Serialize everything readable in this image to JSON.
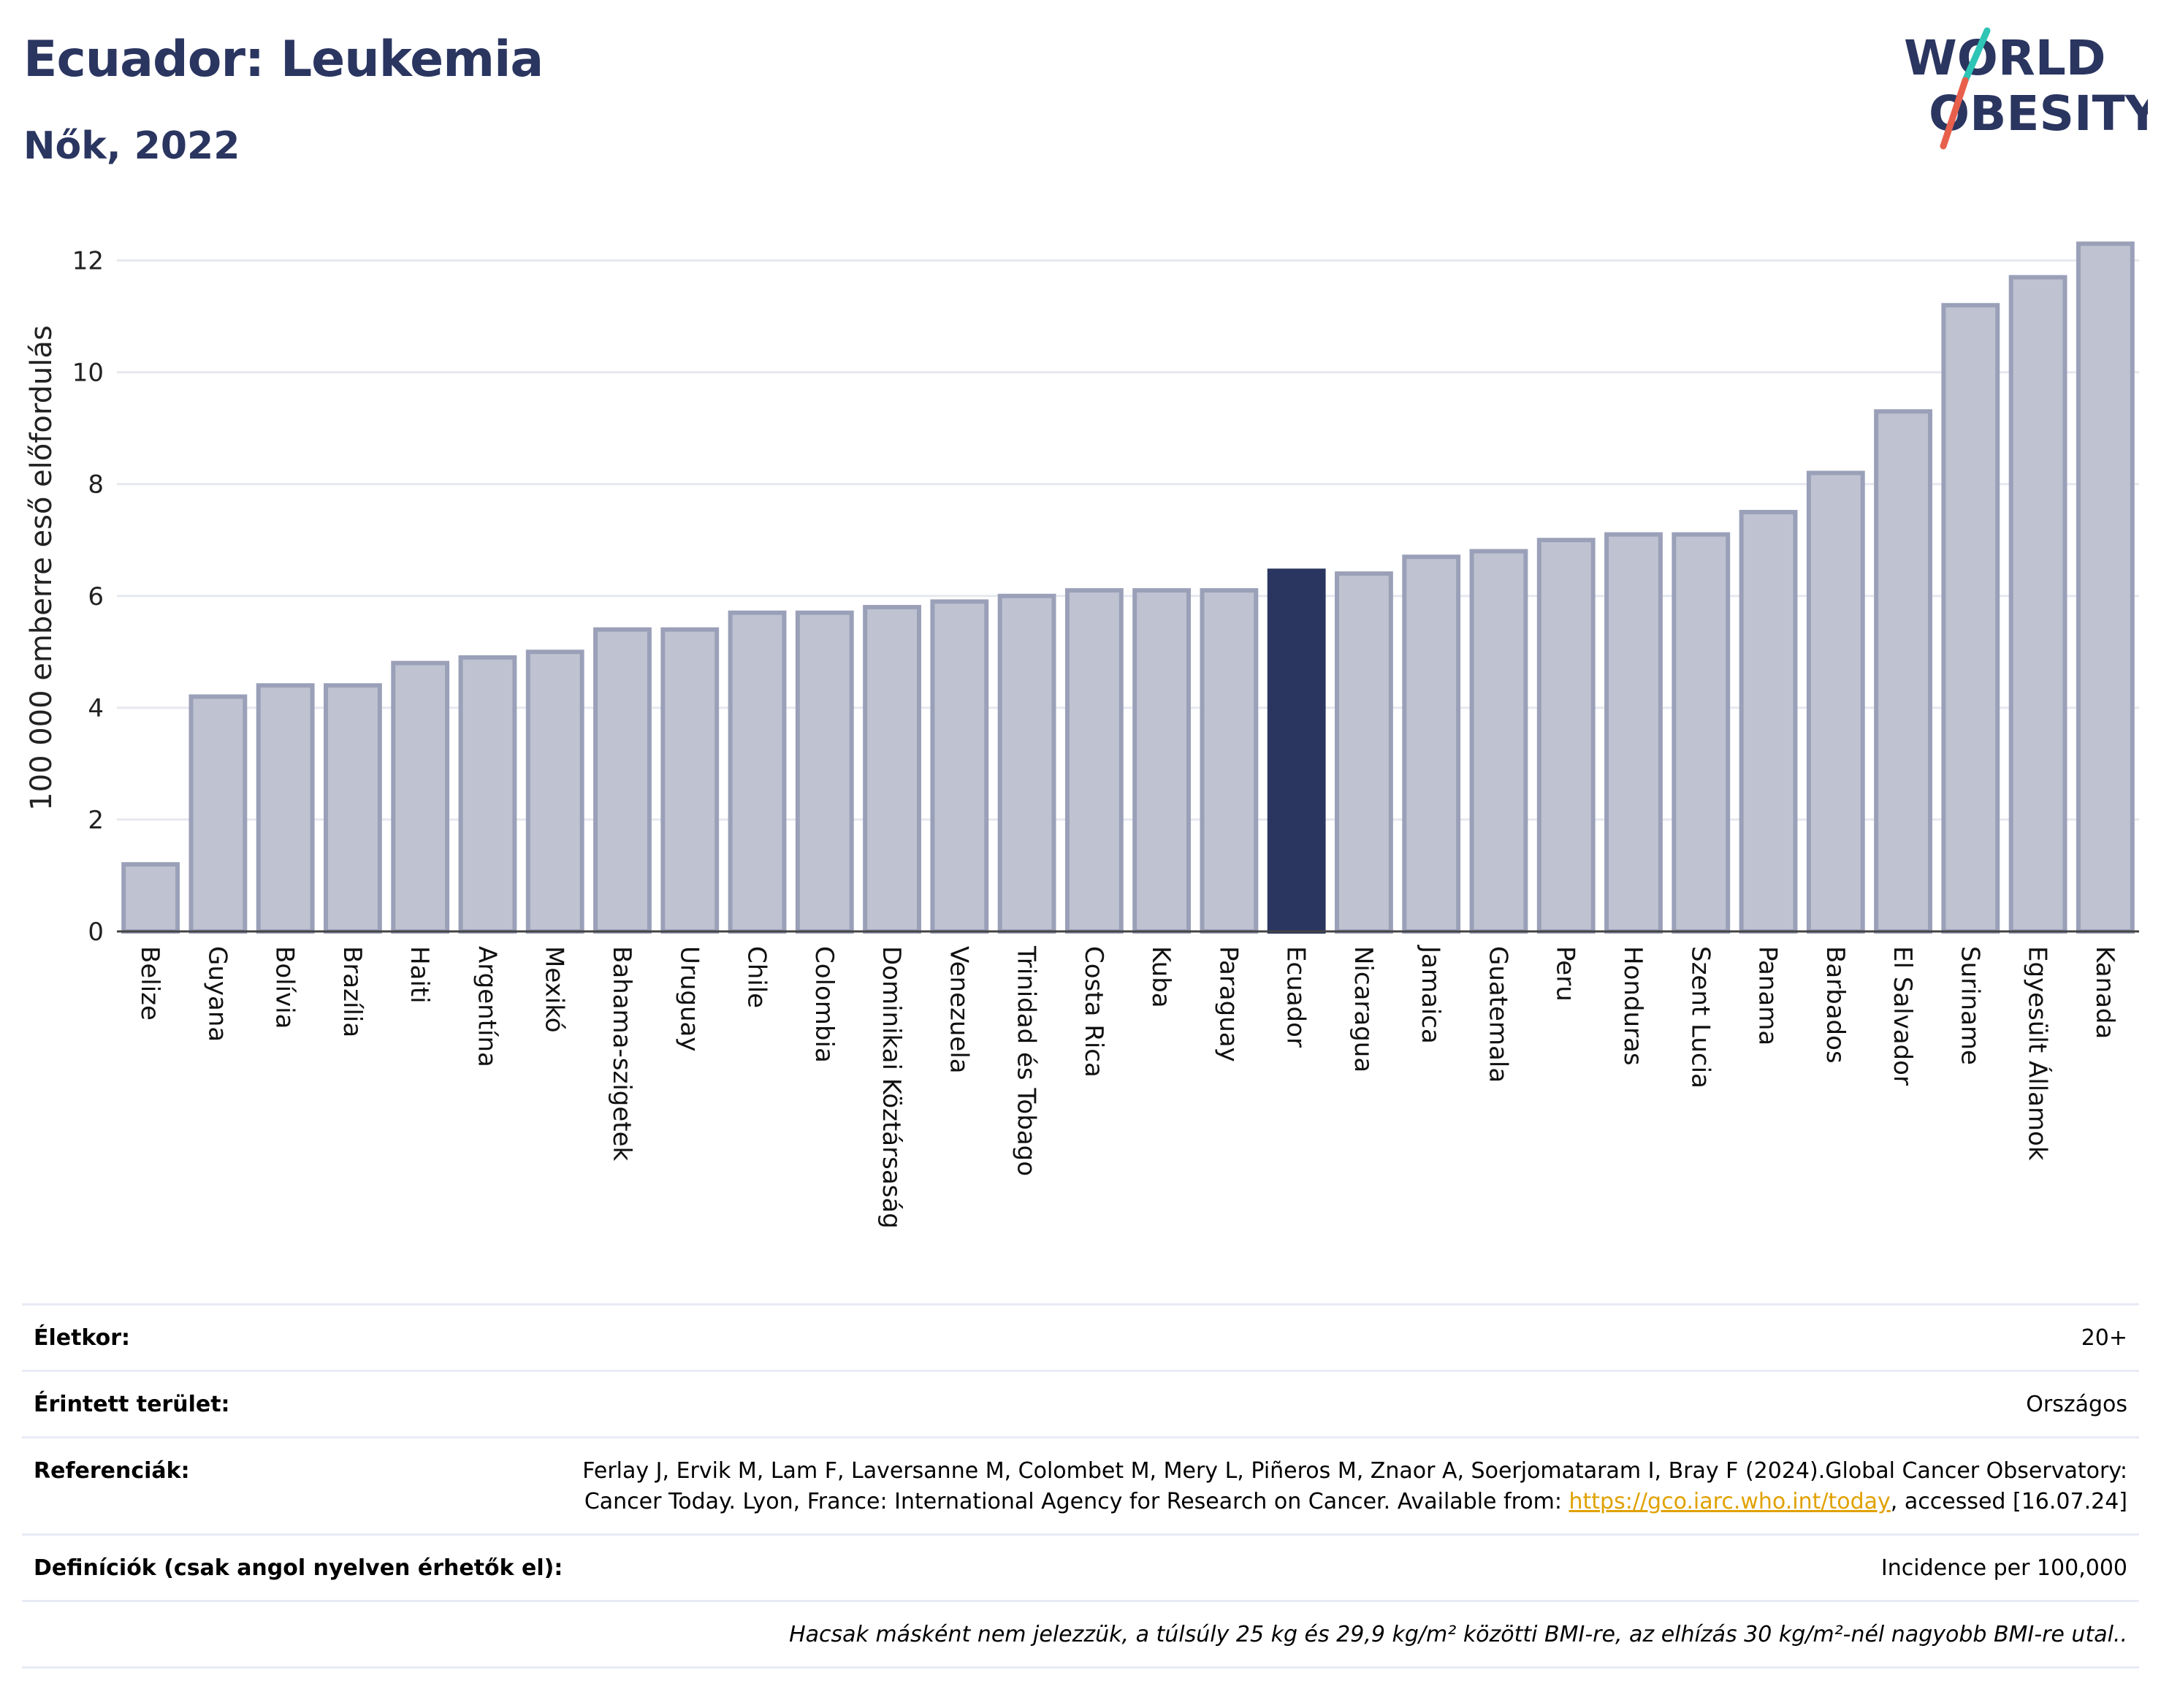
{
  "header": {
    "title": "Ecuador: Leukemia",
    "subtitle": "Nők, 2022"
  },
  "logo": {
    "line1": "WORLD",
    "line2": "OBESITY"
  },
  "colors": {
    "bar": "#bfc3d1",
    "bar_border": "#9aa0b8",
    "highlight": "#2a3560",
    "grid": "#e6e8ef",
    "accent_slash_top": "#2ec4b6",
    "accent_slash_bottom": "#e8604c"
  },
  "chart_data": {
    "type": "bar",
    "title": "",
    "xlabel": "",
    "ylabel": "100 000 emberre eső előfordulás",
    "ylim": [
      0,
      13
    ],
    "yticks": [
      0,
      2,
      4,
      6,
      8,
      10,
      12
    ],
    "grid": true,
    "highlight": "Ecuador",
    "categories": [
      "Belize",
      "Guyana",
      "Bolívia",
      "Brazília",
      "Haiti",
      "Argentína",
      "Mexikó",
      "Bahama-szigetek",
      "Uruguay",
      "Chile",
      "Colombia",
      "Dominikai Köztársaság",
      "Venezuela",
      "Trinidad és Tobago",
      "Costa Rica",
      "Kuba",
      "Paraguay",
      "Ecuador",
      "Nicaragua",
      "Jamaica",
      "Guatemala",
      "Peru",
      "Honduras",
      "Szent Lucia",
      "Panama",
      "Barbados",
      "El Salvador",
      "Suriname",
      "Egyesült Államok",
      "Kanada"
    ],
    "values": [
      1.2,
      4.2,
      4.4,
      4.4,
      4.8,
      4.9,
      5.0,
      5.4,
      5.4,
      5.7,
      5.7,
      5.8,
      5.9,
      6.0,
      6.1,
      6.1,
      6.1,
      6.45,
      6.4,
      6.7,
      6.8,
      7.0,
      7.1,
      7.1,
      7.5,
      8.2,
      9.3,
      11.2,
      11.7,
      12.3
    ]
  },
  "info": {
    "age_label": "Életkor:",
    "age_value": "20+",
    "area_label": "Érintett terület:",
    "area_value": "Országos",
    "ref_label": "Referenciák:",
    "ref_text_1": "Ferlay J, Ervik M, Lam F, Laversanne M, Colombet M, Mery L, Piñeros M, Znaor A, Soerjomataram I, Bray F (2024).Global Cancer Observatory: Cancer Today. Lyon, France: International Agency for Research on Cancer. Available from: ",
    "ref_link": "https://gco.iarc.who.int/today",
    "ref_text_2": ", accessed [16.07.24]",
    "def_label": "Definíciók (csak angol nyelven érhetők el):",
    "def_value": "Incidence per 100,000",
    "note": "Hacsak másként nem jelezzük, a túlsúly 25 kg és 29,9 kg/m² közötti BMI-re, az elhízás 30 kg/m²-nél nagyobb BMI-re utal.."
  }
}
